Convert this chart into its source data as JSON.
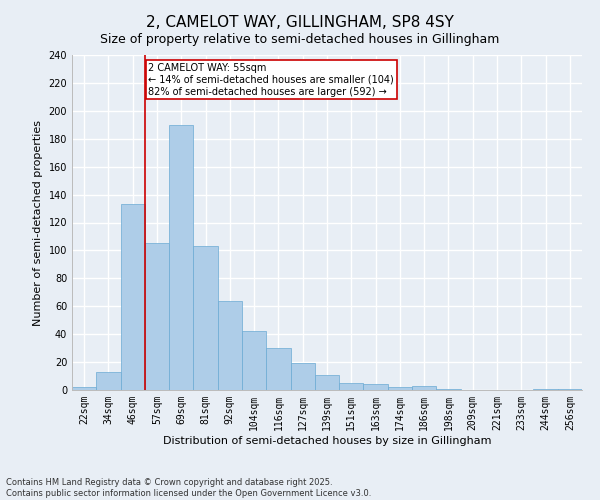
{
  "title": "2, CAMELOT WAY, GILLINGHAM, SP8 4SY",
  "subtitle": "Size of property relative to semi-detached houses in Gillingham",
  "xlabel": "Distribution of semi-detached houses by size in Gillingham",
  "ylabel": "Number of semi-detached properties",
  "categories": [
    "22sqm",
    "34sqm",
    "46sqm",
    "57sqm",
    "69sqm",
    "81sqm",
    "92sqm",
    "104sqm",
    "116sqm",
    "127sqm",
    "139sqm",
    "151sqm",
    "163sqm",
    "174sqm",
    "186sqm",
    "198sqm",
    "209sqm",
    "221sqm",
    "233sqm",
    "244sqm",
    "256sqm"
  ],
  "values": [
    2,
    13,
    133,
    105,
    190,
    103,
    64,
    42,
    30,
    19,
    11,
    5,
    4,
    2,
    3,
    1,
    0,
    0,
    0,
    1,
    1
  ],
  "bar_color": "#aecde8",
  "bar_edge_color": "#6aaad4",
  "vline_color": "#cc0000",
  "vline_pos": 2.5,
  "annotation_text": "2 CAMELOT WAY: 55sqm\n← 14% of semi-detached houses are smaller (104)\n82% of semi-detached houses are larger (592) →",
  "annotation_box_facecolor": "#ffffff",
  "annotation_box_edgecolor": "#cc0000",
  "ylim": [
    0,
    240
  ],
  "yticks": [
    0,
    20,
    40,
    60,
    80,
    100,
    120,
    140,
    160,
    180,
    200,
    220,
    240
  ],
  "footnote": "Contains HM Land Registry data © Crown copyright and database right 2025.\nContains public sector information licensed under the Open Government Licence v3.0.",
  "bg_color": "#e8eef5",
  "plot_bg_color": "#e8eef5",
  "grid_color": "#ffffff",
  "title_fontsize": 11,
  "subtitle_fontsize": 9,
  "xlabel_fontsize": 8,
  "ylabel_fontsize": 8,
  "tick_fontsize": 7,
  "annotation_fontsize": 7,
  "footnote_fontsize": 6
}
